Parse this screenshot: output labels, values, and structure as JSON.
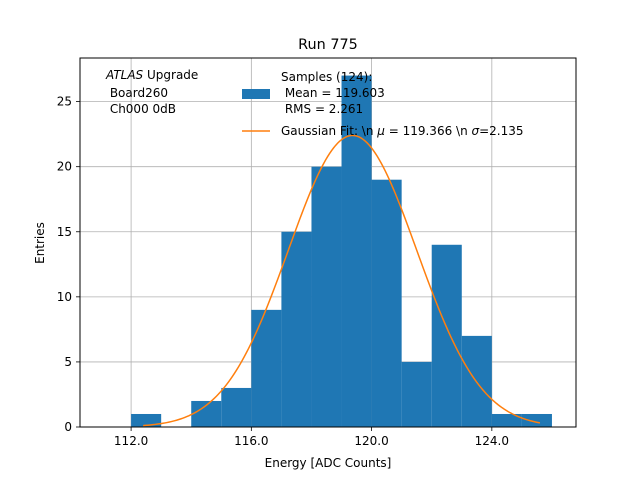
{
  "chart_data": {
    "type": "bar",
    "title": "Run 775",
    "xlabel": "Energy [ADC Counts]",
    "ylabel": "Entries",
    "xlim": [
      110.3,
      126.8
    ],
    "ylim": [
      0,
      28.35
    ],
    "grid": true,
    "x_ticks": [
      112,
      116,
      120,
      124
    ],
    "x_tick_labels": [
      "112.0",
      "116.0",
      "120.0",
      "124.0"
    ],
    "y_ticks": [
      0,
      5,
      10,
      15,
      20,
      25
    ],
    "y_tick_labels": [
      "0",
      "5",
      "10",
      "15",
      "20",
      "25"
    ],
    "bin_edges": [
      112,
      113,
      114,
      115,
      116,
      117,
      118,
      119,
      120,
      121,
      122,
      123,
      124,
      125,
      126
    ],
    "counts": [
      1,
      0,
      2,
      3,
      9,
      15,
      20,
      27,
      19,
      5,
      14,
      7,
      1,
      1
    ],
    "bar_color": "#1f77b4",
    "fit_color": "#ff7f0e",
    "fit": {
      "mu": 119.366,
      "sigma": 2.135,
      "amplitude": 22.4,
      "x_range": [
        112.4,
        125.6
      ]
    },
    "annotation_lines": [
      "ATLAS Upgrade",
      " Board260",
      " Ch000 0dB"
    ],
    "annotation_emph": "ATLAS",
    "annotation_rest": " Upgrade",
    "legend_position": "upper-right",
    "legend": {
      "samples_lines": [
        "Samples (124):",
        " Mean = 119.603",
        " RMS = 2.261"
      ],
      "fit_prefix": "Gaussian Fit: \\n ",
      "fit_mu_sym": "μ",
      "fit_mid": " = 119.366 \\n ",
      "fit_sigma_sym": "σ",
      "fit_suffix": "=2.135"
    }
  }
}
